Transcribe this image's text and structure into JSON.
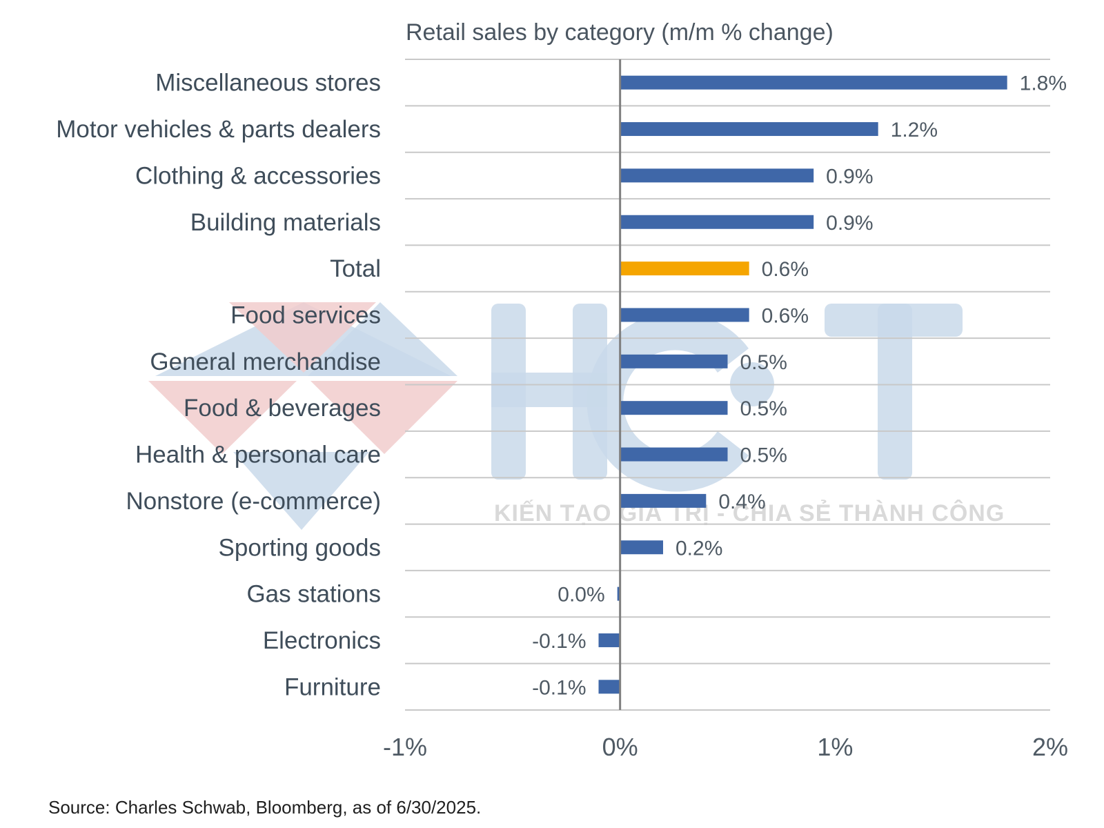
{
  "chart_data": {
    "type": "bar",
    "orientation": "horizontal",
    "title": "Retail sales by category (m/m % change)",
    "xlabel": "",
    "ylabel": "",
    "xlim": [
      -1,
      2
    ],
    "x_ticks": [
      -1,
      0,
      1,
      2
    ],
    "x_tick_labels": [
      "-1%",
      "0%",
      "1%",
      "2%"
    ],
    "grid": "horizontal row separators",
    "categories": [
      "Miscellaneous stores",
      "Motor vehicles & parts dealers",
      "Clothing & accessories",
      "Building materials",
      "Total",
      "Food services",
      "General merchandise",
      "Food & beverages",
      "Health & personal care",
      "Nonstore (e-commerce)",
      "Sporting goods",
      "Gas stations",
      "Electronics",
      "Furniture"
    ],
    "values": [
      1.8,
      1.2,
      0.9,
      0.9,
      0.6,
      0.6,
      0.5,
      0.5,
      0.5,
      0.4,
      0.2,
      0.0,
      -0.1,
      -0.1
    ],
    "value_labels": [
      "1.8%",
      "1.2%",
      "0.9%",
      "0.9%",
      "0.6%",
      "0.6%",
      "0.5%",
      "0.5%",
      "0.5%",
      "0.4%",
      "0.2%",
      "0.0%",
      "-0.1%",
      "-0.1%"
    ],
    "highlight_category": "Total",
    "colors": {
      "default": "#3f67a8",
      "highlight": "#f5a500",
      "axis": "#7f7f7f",
      "grid": "#c8c8c8"
    },
    "source": "Source: Charles Schwab, Bloomberg, as of 6/30/2025."
  },
  "watermark": {
    "letters": "HCT",
    "tagline": "KIẾN TẠO GIÁ TRỊ - CHIA SẺ THÀNH CÔNG",
    "colors": {
      "blue": "#c9d9ea",
      "red": "#f1cccc"
    }
  }
}
